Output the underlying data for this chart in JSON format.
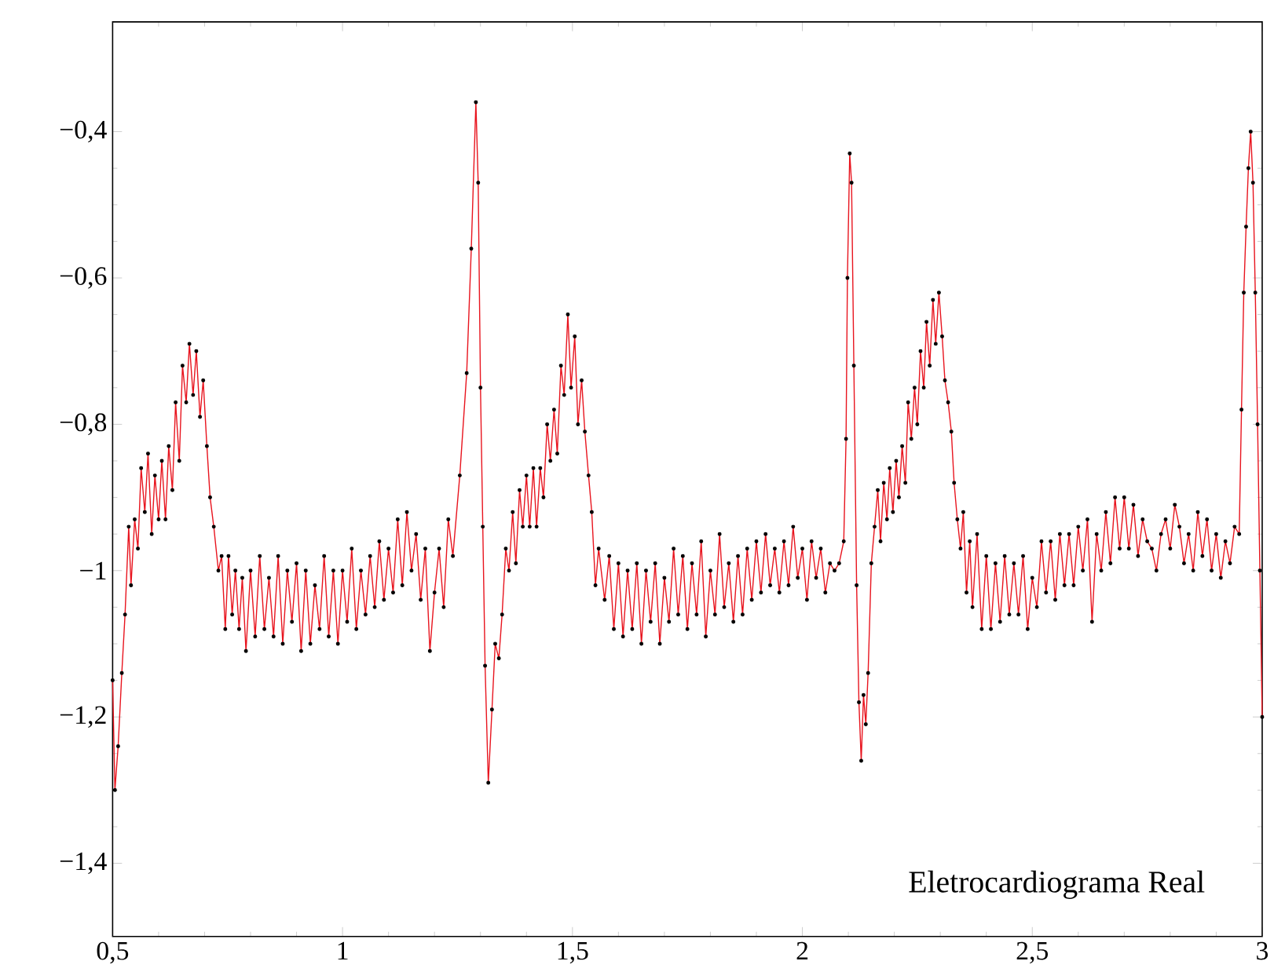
{
  "chart_data": {
    "type": "line",
    "annotations": [
      "Eletrocardiograma Real"
    ],
    "marker": "circle",
    "line_style": "solid",
    "xlim": [
      0.5,
      3
    ],
    "ylim": [
      -1.5,
      -0.25
    ],
    "xticks": [
      {
        "value": 0.5,
        "label": "0,5"
      },
      1,
      {
        "value": 1.5,
        "label": "1,5"
      },
      2,
      {
        "value": 2.5,
        "label": "2,5"
      },
      3
    ],
    "yticks": [
      {
        "value": -1.4,
        "label": "−1,4"
      },
      {
        "value": -1.2,
        "label": "−1,2"
      },
      {
        "value": -1,
        "label": "−1"
      },
      {
        "value": -0.8,
        "label": "−0,8"
      },
      {
        "value": -0.6,
        "label": "−0,6"
      },
      {
        "value": -0.4,
        "label": "−0,4"
      }
    ],
    "series": [
      {
        "color": "#e8141e",
        "x": [
          0.5,
          0.505,
          0.512,
          0.52,
          0.527,
          0.535,
          0.54,
          0.548,
          0.555,
          0.562,
          0.57,
          0.577,
          0.585,
          0.592,
          0.6,
          0.607,
          0.615,
          0.622,
          0.63,
          0.637,
          0.645,
          0.652,
          0.66,
          0.667,
          0.675,
          0.682,
          0.69,
          0.697,
          0.705,
          0.712,
          0.72,
          0.73,
          0.737,
          0.745,
          0.752,
          0.76,
          0.767,
          0.775,
          0.782,
          0.79,
          0.8,
          0.81,
          0.82,
          0.83,
          0.84,
          0.85,
          0.86,
          0.87,
          0.88,
          0.89,
          0.9,
          0.91,
          0.92,
          0.93,
          0.94,
          0.95,
          0.96,
          0.97,
          0.98,
          0.99,
          1.0,
          1.01,
          1.02,
          1.03,
          1.04,
          1.05,
          1.06,
          1.07,
          1.08,
          1.09,
          1.1,
          1.11,
          1.12,
          1.13,
          1.14,
          1.15,
          1.16,
          1.17,
          1.18,
          1.19,
          1.2,
          1.21,
          1.22,
          1.23,
          1.24,
          1.255,
          1.27,
          1.28,
          1.29,
          1.295,
          1.3,
          1.305,
          1.31,
          1.317,
          1.325,
          1.332,
          1.34,
          1.347,
          1.355,
          1.362,
          1.37,
          1.377,
          1.385,
          1.392,
          1.4,
          1.407,
          1.415,
          1.422,
          1.43,
          1.437,
          1.445,
          1.452,
          1.46,
          1.467,
          1.475,
          1.482,
          1.49,
          1.497,
          1.505,
          1.512,
          1.52,
          1.527,
          1.535,
          1.542,
          1.55,
          1.557,
          1.57,
          1.58,
          1.59,
          1.6,
          1.61,
          1.62,
          1.63,
          1.64,
          1.65,
          1.66,
          1.67,
          1.68,
          1.69,
          1.7,
          1.71,
          1.72,
          1.73,
          1.74,
          1.75,
          1.76,
          1.77,
          1.78,
          1.79,
          1.8,
          1.81,
          1.82,
          1.83,
          1.84,
          1.85,
          1.86,
          1.87,
          1.88,
          1.89,
          1.9,
          1.91,
          1.92,
          1.93,
          1.94,
          1.95,
          1.96,
          1.97,
          1.98,
          1.99,
          2.0,
          2.01,
          2.02,
          2.03,
          2.04,
          2.05,
          2.06,
          2.07,
          2.08,
          2.09,
          2.095,
          2.098,
          2.103,
          2.107,
          2.112,
          2.118,
          2.123,
          2.128,
          2.133,
          2.138,
          2.143,
          2.15,
          2.157,
          2.164,
          2.17,
          2.177,
          2.184,
          2.19,
          2.197,
          2.204,
          2.21,
          2.217,
          2.224,
          2.23,
          2.237,
          2.244,
          2.25,
          2.257,
          2.264,
          2.27,
          2.277,
          2.284,
          2.29,
          2.297,
          2.304,
          2.31,
          2.317,
          2.324,
          2.33,
          2.337,
          2.344,
          2.35,
          2.357,
          2.364,
          2.37,
          2.38,
          2.39,
          2.4,
          2.41,
          2.42,
          2.43,
          2.44,
          2.45,
          2.46,
          2.47,
          2.48,
          2.49,
          2.5,
          2.51,
          2.52,
          2.53,
          2.54,
          2.55,
          2.56,
          2.57,
          2.58,
          2.59,
          2.6,
          2.61,
          2.62,
          2.63,
          2.64,
          2.65,
          2.66,
          2.67,
          2.68,
          2.69,
          2.7,
          2.71,
          2.72,
          2.73,
          2.74,
          2.75,
          2.76,
          2.77,
          2.78,
          2.79,
          2.8,
          2.81,
          2.82,
          2.83,
          2.84,
          2.85,
          2.86,
          2.87,
          2.88,
          2.89,
          2.9,
          2.91,
          2.92,
          2.93,
          2.94,
          2.95,
          2.955,
          2.96,
          2.965,
          2.97,
          2.975,
          2.98,
          2.985,
          2.99,
          2.995,
          3.0
        ],
        "values": [
          -1.15,
          -1.3,
          -1.24,
          -1.14,
          -1.06,
          -0.94,
          -1.02,
          -0.93,
          -0.97,
          -0.86,
          -0.92,
          -0.84,
          -0.95,
          -0.87,
          -0.93,
          -0.85,
          -0.93,
          -0.83,
          -0.89,
          -0.77,
          -0.85,
          -0.72,
          -0.77,
          -0.69,
          -0.76,
          -0.7,
          -0.79,
          -0.74,
          -0.83,
          -0.9,
          -0.94,
          -1.0,
          -0.98,
          -1.08,
          -0.98,
          -1.06,
          -1.0,
          -1.08,
          -1.01,
          -1.11,
          -1.0,
          -1.09,
          -0.98,
          -1.08,
          -1.01,
          -1.09,
          -0.98,
          -1.1,
          -1.0,
          -1.07,
          -0.99,
          -1.11,
          -1.0,
          -1.1,
          -1.02,
          -1.08,
          -0.98,
          -1.09,
          -1.0,
          -1.1,
          -1.0,
          -1.07,
          -0.97,
          -1.08,
          -1.0,
          -1.06,
          -0.98,
          -1.05,
          -0.96,
          -1.04,
          -0.97,
          -1.03,
          -0.93,
          -1.02,
          -0.92,
          -1.0,
          -0.95,
          -1.04,
          -0.97,
          -1.11,
          -1.03,
          -0.97,
          -1.05,
          -0.93,
          -0.98,
          -0.87,
          -0.73,
          -0.56,
          -0.36,
          -0.47,
          -0.75,
          -0.94,
          -1.13,
          -1.29,
          -1.19,
          -1.1,
          -1.12,
          -1.06,
          -0.97,
          -1.0,
          -0.92,
          -0.99,
          -0.89,
          -0.94,
          -0.87,
          -0.94,
          -0.86,
          -0.94,
          -0.86,
          -0.9,
          -0.8,
          -0.85,
          -0.78,
          -0.84,
          -0.72,
          -0.76,
          -0.65,
          -0.75,
          -0.68,
          -0.8,
          -0.74,
          -0.81,
          -0.87,
          -0.92,
          -1.02,
          -0.97,
          -1.04,
          -0.98,
          -1.08,
          -0.99,
          -1.09,
          -1.0,
          -1.08,
          -0.99,
          -1.1,
          -1.0,
          -1.07,
          -0.99,
          -1.1,
          -1.01,
          -1.07,
          -0.97,
          -1.06,
          -0.98,
          -1.08,
          -0.99,
          -1.06,
          -0.96,
          -1.09,
          -1.0,
          -1.06,
          -0.95,
          -1.05,
          -0.99,
          -1.07,
          -0.98,
          -1.06,
          -0.97,
          -1.04,
          -0.96,
          -1.03,
          -0.95,
          -1.02,
          -0.97,
          -1.03,
          -0.96,
          -1.02,
          -0.94,
          -1.01,
          -0.97,
          -1.04,
          -0.96,
          -1.01,
          -0.97,
          -1.03,
          -0.99,
          -1.0,
          -0.99,
          -0.96,
          -0.82,
          -0.6,
          -0.43,
          -0.47,
          -0.72,
          -1.02,
          -1.18,
          -1.26,
          -1.17,
          -1.21,
          -1.14,
          -0.99,
          -0.94,
          -0.89,
          -0.96,
          -0.88,
          -0.93,
          -0.86,
          -0.92,
          -0.85,
          -0.9,
          -0.83,
          -0.88,
          -0.77,
          -0.82,
          -0.75,
          -0.8,
          -0.7,
          -0.75,
          -0.66,
          -0.72,
          -0.63,
          -0.69,
          -0.62,
          -0.68,
          -0.74,
          -0.77,
          -0.81,
          -0.88,
          -0.93,
          -0.97,
          -0.92,
          -1.03,
          -0.96,
          -1.05,
          -0.95,
          -1.08,
          -0.98,
          -1.08,
          -0.99,
          -1.07,
          -0.98,
          -1.06,
          -0.99,
          -1.06,
          -0.98,
          -1.08,
          -1.01,
          -1.05,
          -0.96,
          -1.03,
          -0.96,
          -1.04,
          -0.95,
          -1.02,
          -0.95,
          -1.02,
          -0.94,
          -1.0,
          -0.93,
          -1.07,
          -0.95,
          -1.0,
          -0.92,
          -0.99,
          -0.9,
          -0.97,
          -0.9,
          -0.97,
          -0.91,
          -0.98,
          -0.93,
          -0.96,
          -0.97,
          -1.0,
          -0.95,
          -0.93,
          -0.97,
          -0.91,
          -0.94,
          -0.99,
          -0.95,
          -1.0,
          -0.92,
          -0.98,
          -0.93,
          -1.0,
          -0.95,
          -1.01,
          -0.96,
          -0.99,
          -0.94,
          -0.95,
          -0.78,
          -0.62,
          -0.53,
          -0.45,
          -0.4,
          -0.47,
          -0.62,
          -0.8,
          -1.0,
          -1.2
        ]
      }
    ]
  }
}
